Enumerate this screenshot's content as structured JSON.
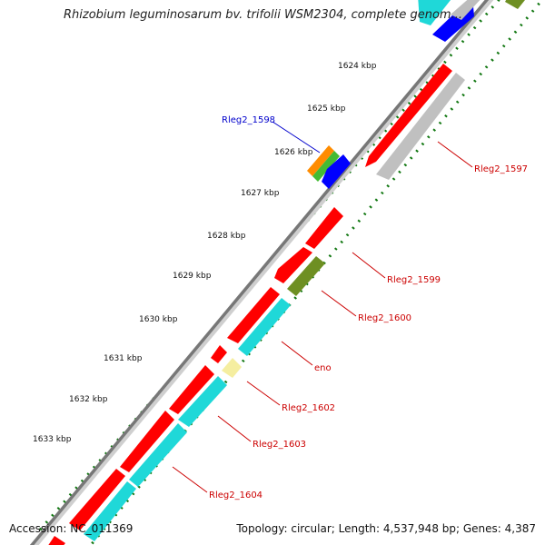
{
  "title": "Rhizobium leguminosarum bv. trifolii WSM2304, complete genom...",
  "accession_label": "Accession: NC_011369",
  "summary": "Topology: circular; Length: 4,537,948 bp; Genes: 4,387",
  "colors": {
    "red": "#ff0000",
    "cyan": "#1fd8d8",
    "blue": "#0000ff",
    "olive": "#6e8f22",
    "green": "#44bb33",
    "orange": "#ff8c00",
    "gray": "#bdbdbd",
    "pale_yellow": "#f5eea0",
    "label_red": "#cc0000",
    "label_blue": "#0000cc",
    "tick_green": "#117711"
  },
  "kbp_ticks": [
    "1624 kbp",
    "1625 kbp",
    "1626 kbp",
    "1627 kbp",
    "1628 kbp",
    "1629 kbp",
    "1630 kbp",
    "1631 kbp",
    "1632 kbp",
    "1633 kbp"
  ],
  "gene_labels": [
    "Rleg2_1597",
    "Rleg2_1598",
    "Rleg2_1599",
    "Rleg2_1600",
    "eno",
    "Rleg2_1602",
    "Rleg2_1603",
    "Rleg2_1604"
  ]
}
